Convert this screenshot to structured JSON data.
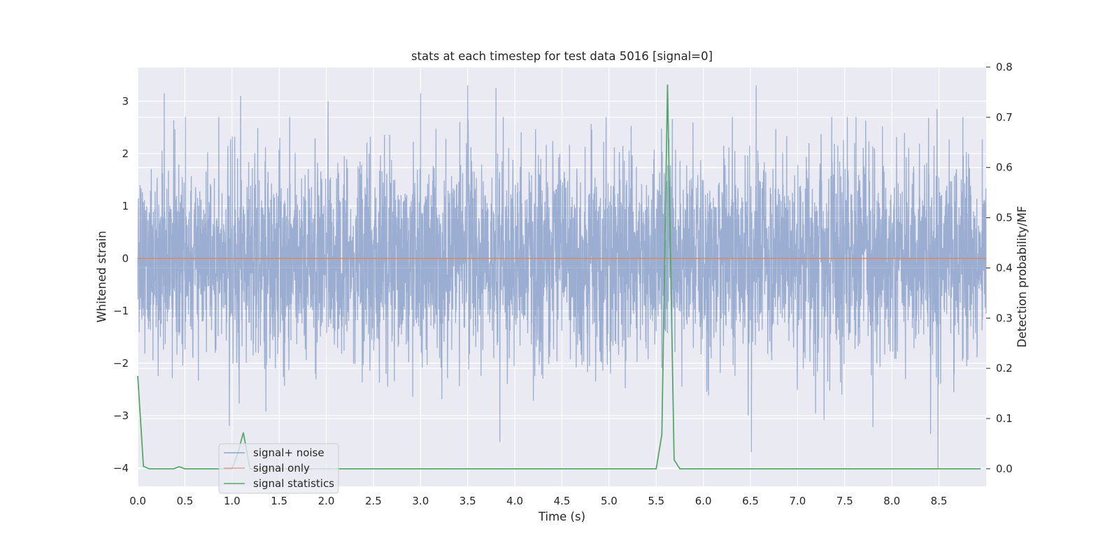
{
  "chart_data": {
    "type": "line",
    "title": "stats at each timestep for test data 5016 [signal=0]",
    "xlabel": "Time (s)",
    "ylabel_left": "Whitened strain",
    "ylabel_right": "Detection probability/MF",
    "xlim": [
      0.0,
      9.0
    ],
    "ylim_left": [
      -4.35,
      3.65
    ],
    "ylim_right": [
      -0.035,
      0.8
    ],
    "x_ticks": [
      "0.0",
      "0.5",
      "1.0",
      "1.5",
      "2.0",
      "2.5",
      "3.0",
      "3.5",
      "4.0",
      "4.5",
      "5.0",
      "5.5",
      "6.0",
      "6.5",
      "7.0",
      "7.5",
      "8.0",
      "8.5"
    ],
    "y_left_ticks": [
      "3",
      "2",
      "1",
      "0",
      "−1",
      "−2",
      "−3",
      "−4"
    ],
    "y_right_ticks": [
      "0.8",
      "0.7",
      "0.6",
      "0.5",
      "0.4",
      "0.3",
      "0.2",
      "0.1",
      "0.0"
    ],
    "grid": true,
    "legend_position": "lower-left",
    "colors": {
      "background": "#eaeaf2",
      "grid": "#ffffff",
      "signal_noise": "#4c72b0",
      "signal_only": "#dd8452",
      "signal_statistics": "#55a868"
    },
    "series": [
      {
        "name": "signal+ noise",
        "axis": "left",
        "description_values": "whitened noise, approx. gaussian, range about -4 to 3.3",
        "spikes_up": [
          [
            0.28,
            3.15
          ],
          [
            0.86,
            2.7
          ],
          [
            1.09,
            3.1
          ],
          [
            2.02,
            3.0
          ],
          [
            3.0,
            3.15
          ],
          [
            3.5,
            3.3
          ],
          [
            3.8,
            3.25
          ],
          [
            6.56,
            3.3
          ],
          [
            8.48,
            2.85
          ]
        ],
        "spikes_down": [
          [
            0.97,
            -3.2
          ],
          [
            3.84,
            -3.5
          ],
          [
            6.51,
            -3.7
          ],
          [
            7.28,
            -3.08
          ],
          [
            7.8,
            -3.22
          ],
          [
            8.41,
            -3.35
          ],
          [
            8.49,
            -4.0
          ]
        ]
      },
      {
        "name": "signal only",
        "axis": "left",
        "x": [
          0.0,
          9.0
        ],
        "y": [
          0.0,
          0.0
        ]
      },
      {
        "name": "signal statistics",
        "axis": "right",
        "x": [
          0.0,
          0.06,
          0.12,
          0.19,
          0.25,
          0.31,
          0.38,
          0.44,
          0.5,
          0.56,
          0.62,
          0.69,
          0.75,
          0.81,
          0.88,
          0.94,
          1.0,
          1.06,
          1.12,
          1.19,
          1.25,
          1.31,
          1.38,
          1.44,
          1.5,
          1.56,
          1.62,
          1.69,
          1.75,
          1.81,
          1.88,
          1.94,
          2.0,
          2.06,
          2.12,
          2.19,
          2.25,
          2.31,
          2.38,
          2.44,
          2.5,
          2.56,
          2.62,
          2.69,
          2.75,
          2.81,
          2.88,
          2.94,
          3.0,
          3.06,
          3.12,
          3.19,
          3.25,
          3.31,
          3.38,
          3.44,
          3.5,
          3.56,
          3.62,
          3.69,
          3.75,
          3.81,
          3.88,
          3.94,
          4.0,
          4.06,
          4.12,
          4.19,
          4.25,
          4.31,
          4.38,
          4.44,
          4.5,
          4.56,
          4.62,
          4.69,
          4.75,
          4.81,
          4.88,
          4.94,
          5.0,
          5.06,
          5.12,
          5.19,
          5.25,
          5.31,
          5.38,
          5.44,
          5.5,
          5.56,
          5.62,
          5.69,
          5.75,
          5.81,
          5.88,
          5.94,
          6.0,
          6.06,
          6.12,
          6.19,
          6.25,
          6.31,
          6.38,
          6.44,
          6.5,
          6.56,
          6.62,
          6.69,
          6.75,
          6.81,
          6.88,
          6.94,
          7.0,
          7.06,
          7.12,
          7.19,
          7.25,
          7.31,
          7.38,
          7.44,
          7.5,
          7.56,
          7.62,
          7.69,
          7.75,
          7.81,
          7.88,
          7.94,
          8.0,
          8.06,
          8.12,
          8.19,
          8.25,
          8.31,
          8.38,
          8.44,
          8.5,
          8.56,
          8.62,
          8.69,
          8.75,
          8.81,
          8.88,
          8.94
        ],
        "y": [
          0.185,
          0.005,
          0.0,
          0.0,
          0.0,
          0.0,
          0.0,
          0.004,
          0.0,
          0.0,
          0.0,
          0.0,
          0.0,
          0.0,
          0.0,
          0.0,
          0.0,
          0.03,
          0.072,
          0.0,
          0.0,
          0.0,
          0.0,
          0.0,
          0.0,
          0.0,
          0.0,
          0.0,
          0.0,
          0.0,
          0.0,
          0.0,
          0.0,
          0.0,
          0.0,
          0.0,
          0.0,
          0.0,
          0.0,
          0.0,
          0.0,
          0.0,
          0.0,
          0.0,
          0.0,
          0.0,
          0.0,
          0.0,
          0.0,
          0.0,
          0.0,
          0.0,
          0.0,
          0.0,
          0.0,
          0.0,
          0.0,
          0.0,
          0.0,
          0.0,
          0.0,
          0.0,
          0.0,
          0.0,
          0.0,
          0.0,
          0.0,
          0.0,
          0.0,
          0.0,
          0.0,
          0.0,
          0.0,
          0.0,
          0.0,
          0.0,
          0.0,
          0.0,
          0.0,
          0.0,
          0.0,
          0.0,
          0.0,
          0.0,
          0.0,
          0.0,
          0.0,
          0.0,
          0.0,
          0.068,
          0.765,
          0.018,
          0.0,
          0.0,
          0.0,
          0.0,
          0.0,
          0.0,
          0.0,
          0.0,
          0.0,
          0.0,
          0.0,
          0.0,
          0.0,
          0.0,
          0.0,
          0.0,
          0.0,
          0.0,
          0.0,
          0.0,
          0.0,
          0.0,
          0.0,
          0.0,
          0.0,
          0.0,
          0.0,
          0.0,
          0.0,
          0.0,
          0.0,
          0.0,
          0.0,
          0.0,
          0.0,
          0.0,
          0.0,
          0.0,
          0.0,
          0.0,
          0.0,
          0.0,
          0.0,
          0.0,
          0.0,
          0.0,
          0.0,
          0.0,
          0.0,
          0.0,
          0.0,
          0.0
        ]
      }
    ]
  }
}
